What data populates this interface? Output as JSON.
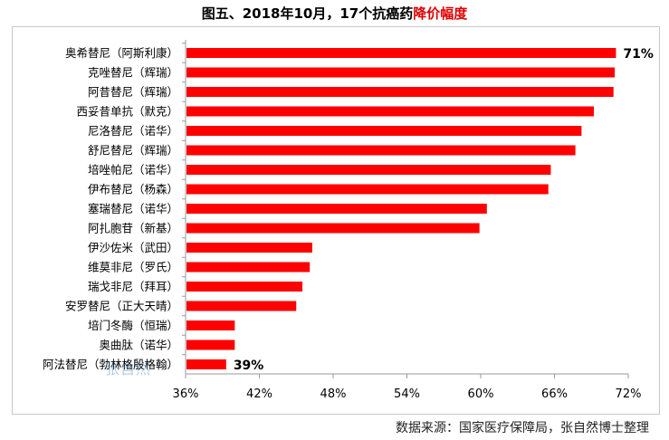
{
  "title": {
    "part1": "图五、2018年10月，17个抗癌药",
    "part2": "降价幅度"
  },
  "source": "数据来源：国家医疗保障局，张自然博士整理",
  "watermark": "张自然",
  "colors": {
    "bar": "#ff0000",
    "title_accent": "#e00000"
  },
  "chart_data": {
    "type": "bar",
    "orientation": "horizontal",
    "categories": [
      "奥希替尼（阿斯利康）",
      "克唑替尼（辉瑞）",
      "阿昔替尼（辉瑞）",
      "西妥昔单抗（默克）",
      "尼洛替尼（诺华）",
      "舒尼替尼（辉瑞）",
      "培唑帕尼（诺华）",
      "伊布替尼（杨森）",
      "塞瑞替尼（诺华）",
      "阿扎胞苷（新基）",
      "伊沙佐米（武田）",
      "维莫非尼（罗氏）",
      "瑞戈非尼（拜耳）",
      "安罗替尼（正大天晴）",
      "培门冬酶（恒瑞）",
      "奥曲肽（诺华）",
      "阿法替尼（勃林格殷格翰）"
    ],
    "values": [
      71,
      70.9,
      70.8,
      69.2,
      68.2,
      67.7,
      65.7,
      65.5,
      60.5,
      59.9,
      46.3,
      46.1,
      45.5,
      45.0,
      40.0,
      40.0,
      39.3
    ],
    "data_labels": [
      {
        "index": 0,
        "text": "71%"
      },
      {
        "index": 16,
        "text": "39%"
      }
    ],
    "xlim": [
      36,
      72
    ],
    "ticks": [
      "36%",
      "42%",
      "48%",
      "54%",
      "60%",
      "66%",
      "72%"
    ],
    "tick_values": [
      36,
      42,
      48,
      54,
      60,
      66,
      72
    ],
    "grid": false
  }
}
